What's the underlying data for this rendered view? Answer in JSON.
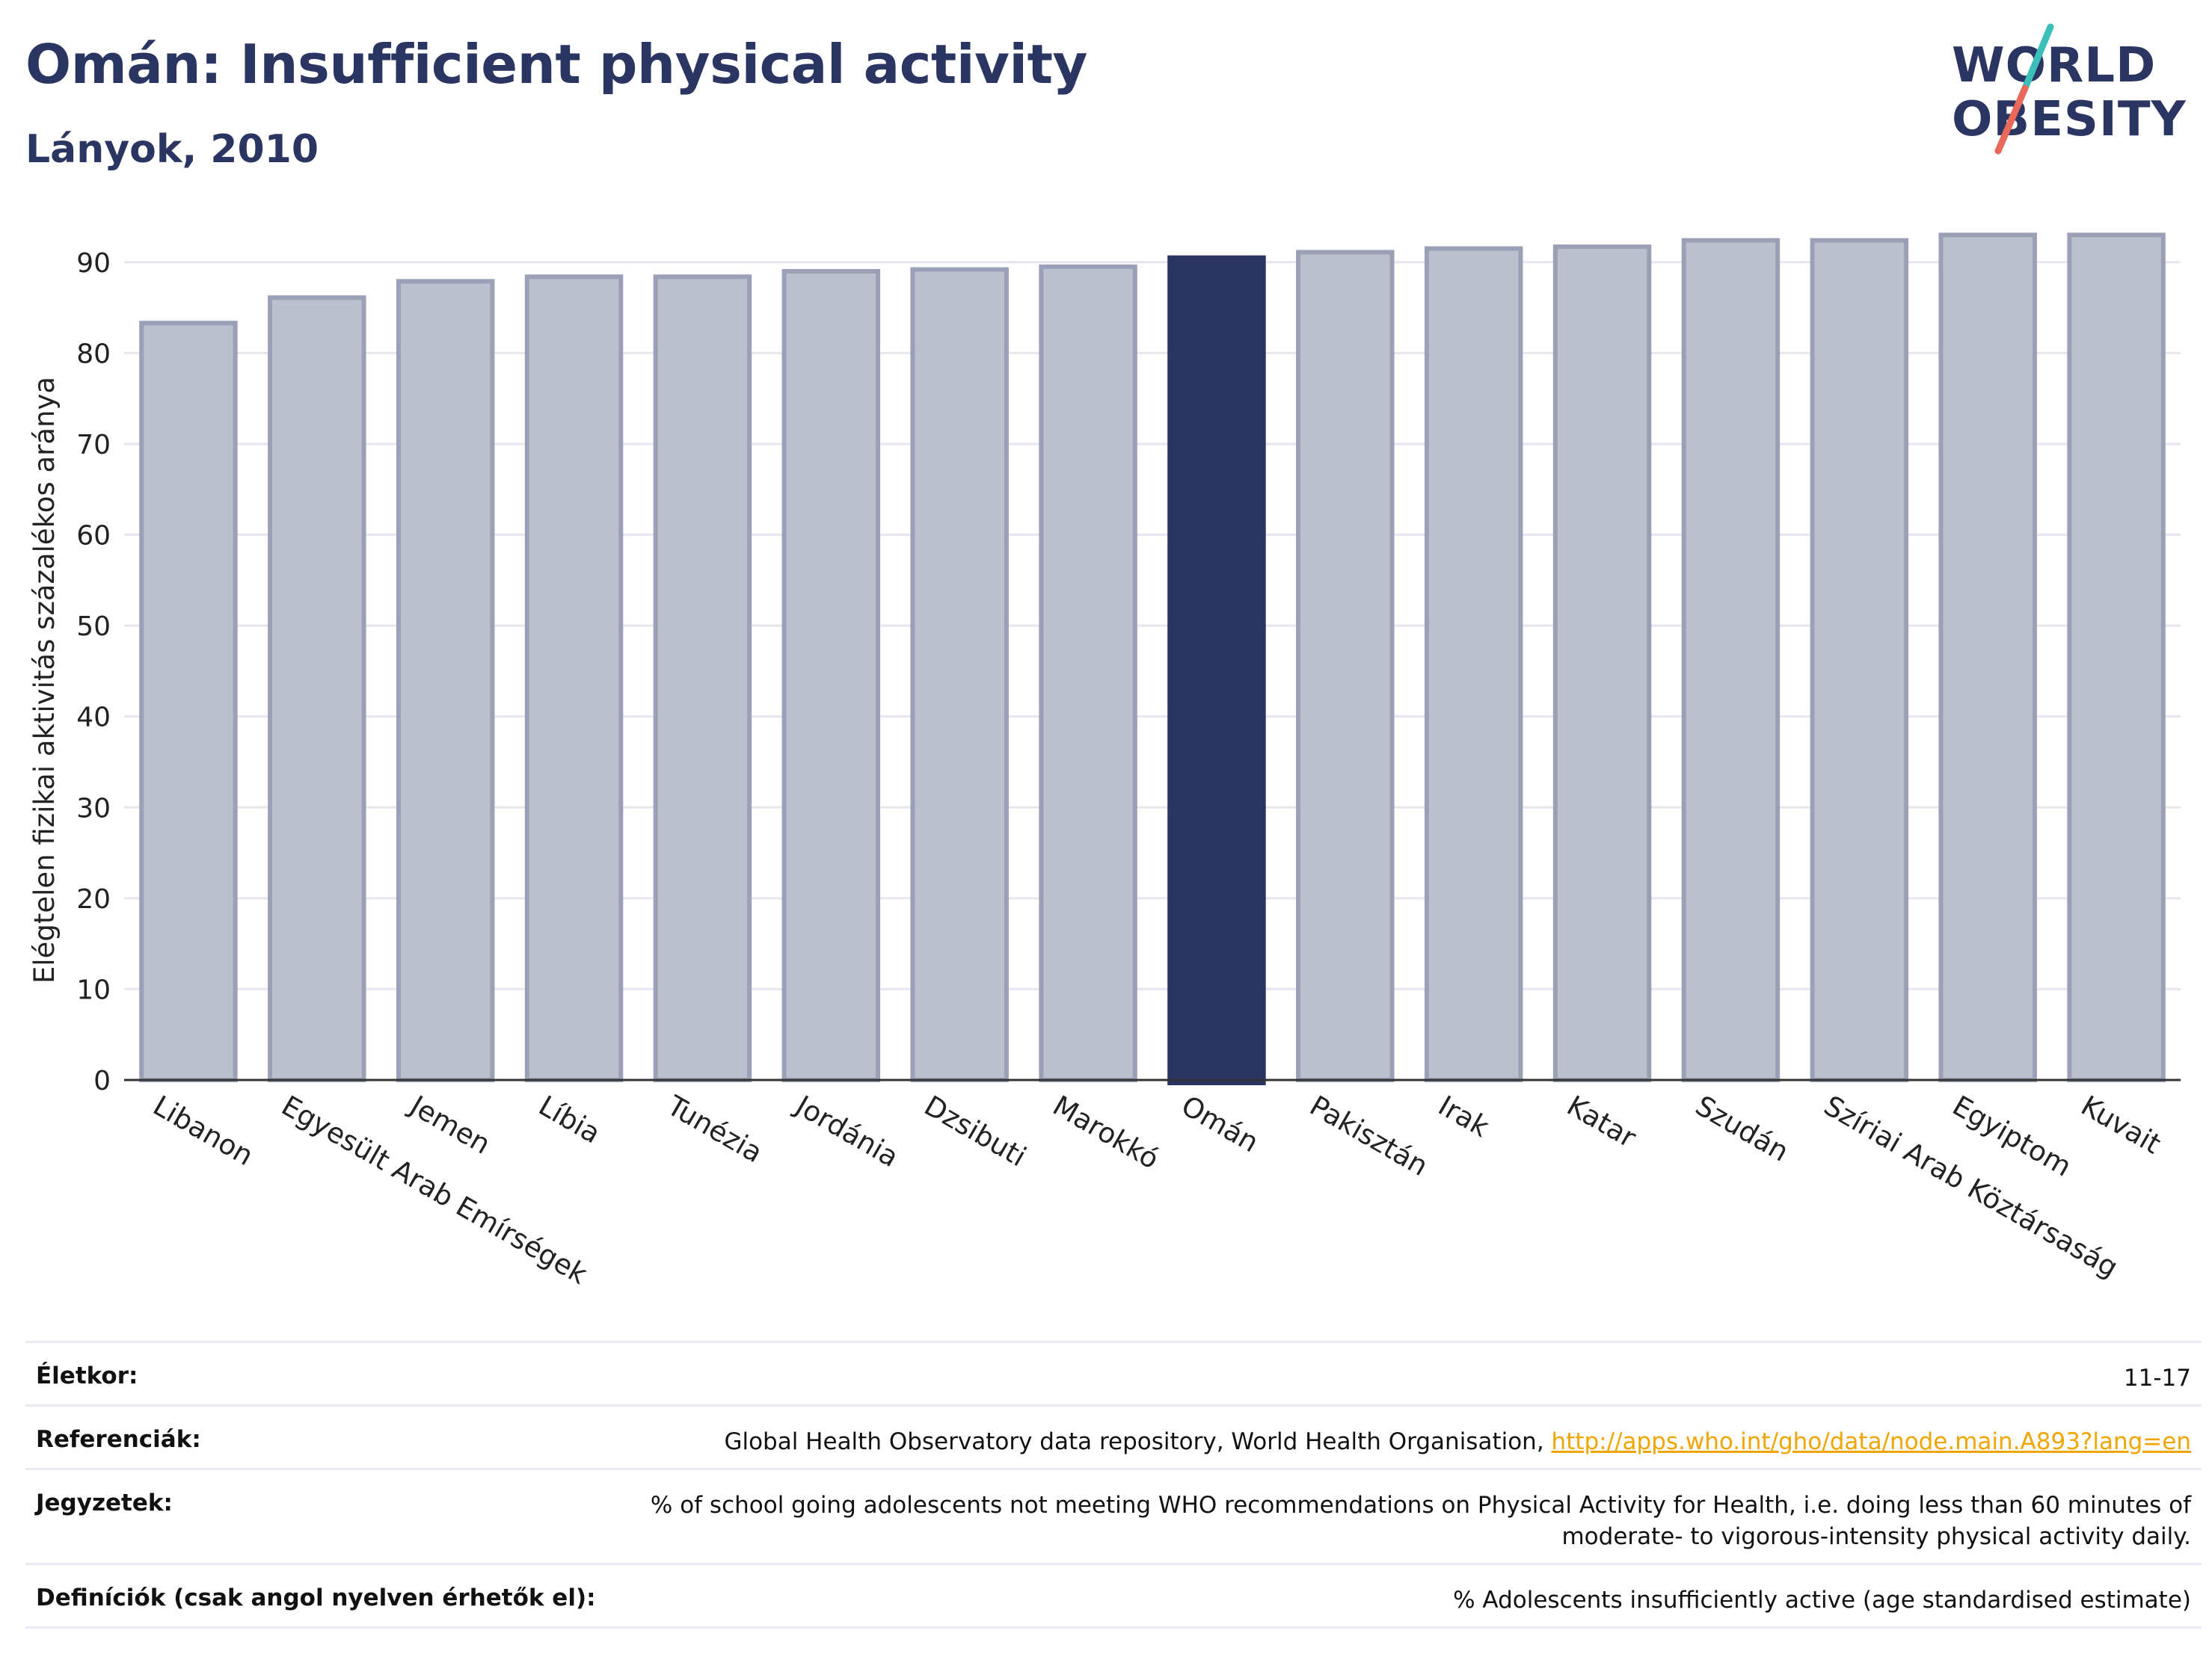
{
  "header": {
    "title": "Omán: Insufficient physical activity",
    "subtitle": "Lányok, 2010"
  },
  "logo": {
    "line1": "WORLD",
    "line2": "OBESITY",
    "accent_colors": [
      "#3bbfb8",
      "#e8685a"
    ]
  },
  "colors": {
    "bar": "#bcc0cd",
    "bar_stroke": "#9aa0b6",
    "highlight": "#2b3561",
    "grid": "#e6e7ee",
    "link": "#f0a500"
  },
  "chart_data": {
    "type": "bar",
    "categories": [
      "Libanon",
      "Egyesült Arab Emírségek",
      "Jemen",
      "Líbia",
      "Tunézia",
      "Jordánia",
      "Dzsibuti",
      "Marokkó",
      "Omán",
      "Pakisztán",
      "Irak",
      "Katar",
      "Szudán",
      "Szíriai Arab Köztársaság",
      "Egyiptom",
      "Kuvait"
    ],
    "values": [
      83.3,
      86.1,
      87.9,
      88.4,
      88.4,
      89.0,
      89.2,
      89.5,
      90.5,
      91.1,
      91.5,
      91.7,
      92.4,
      92.4,
      93.0,
      93.0
    ],
    "highlight": "Omán",
    "ylabel": "Elégtelen fizikai aktivitás százalékos aránya",
    "ylim": [
      0,
      95
    ],
    "yticks": [
      0,
      10,
      20,
      30,
      40,
      50,
      60,
      70,
      80,
      90
    ],
    "grid": true
  },
  "meta": {
    "age_label": "Életkor:",
    "age_value": "11-17",
    "ref_label": "Referenciák:",
    "ref_text": "Global Health Observatory data repository, World Health Organisation, ",
    "ref_link": "http://apps.who.int/gho/data/node.main.A893?lang=en",
    "notes_label": "Jegyzetek:",
    "notes_line1": "% of school going adolescents not meeting WHO recommendations on Physical Activity for Health, i.e. doing less than 60 minutes of",
    "notes_line2": "moderate- to vigorous-intensity physical activity daily.",
    "def_label": "Definíciók (csak angol nyelven érhetők el):",
    "def_value": "% Adolescents insufficiently active (age standardised estimate)"
  }
}
